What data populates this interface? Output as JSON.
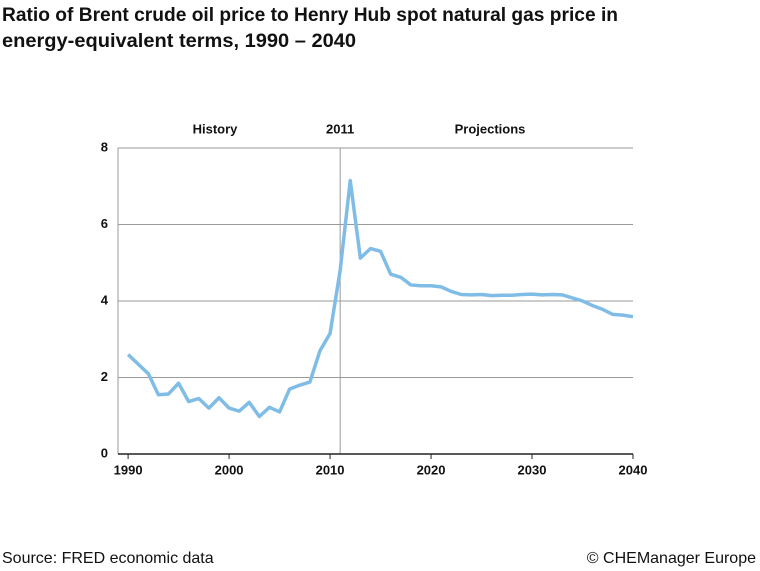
{
  "chart_data": {
    "type": "line",
    "title": [
      "Ratio of Brent crude oil price to Henry Hub spot natural gas price in",
      "energy-equivalent terms, 1990 – 2040"
    ],
    "x": [
      1990,
      1991,
      1992,
      1993,
      1994,
      1995,
      1996,
      1997,
      1998,
      1999,
      2000,
      2001,
      2002,
      2003,
      2004,
      2005,
      2006,
      2007,
      2008,
      2009,
      2010,
      2011,
      2012,
      2013,
      2014,
      2015,
      2016,
      2017,
      2018,
      2019,
      2020,
      2021,
      2022,
      2023,
      2024,
      2025,
      2026,
      2027,
      2028,
      2029,
      2030,
      2031,
      2032,
      2033,
      2034,
      2035,
      2036,
      2037,
      2038,
      2039,
      2040
    ],
    "series": [
      {
        "color": "#7fbde6",
        "values": [
          2.6,
          2.35,
          2.1,
          1.55,
          1.57,
          1.85,
          1.37,
          1.45,
          1.2,
          1.47,
          1.2,
          1.12,
          1.35,
          0.98,
          1.22,
          1.1,
          1.7,
          1.8,
          1.88,
          2.7,
          3.15,
          4.8,
          7.15,
          5.12,
          5.37,
          5.3,
          4.7,
          4.62,
          4.42,
          4.4,
          4.4,
          4.37,
          4.25,
          4.17,
          4.16,
          4.17,
          4.14,
          4.15,
          4.15,
          4.17,
          4.18,
          4.16,
          4.17,
          4.16,
          4.08,
          4.0,
          3.88,
          3.78,
          3.65,
          3.63,
          3.59
        ]
      }
    ],
    "xlim": [
      1989,
      2040
    ],
    "xticks": [
      1990,
      2000,
      2010,
      2020,
      2030,
      2040
    ],
    "ylim": [
      0,
      8
    ],
    "yticks": [
      0,
      2,
      4,
      6,
      8
    ],
    "grid": true,
    "divider": 2011,
    "annotations": [
      "History",
      "Projections"
    ],
    "source": "Source: FRED economic data",
    "credit": "© CHEManager Europe"
  }
}
